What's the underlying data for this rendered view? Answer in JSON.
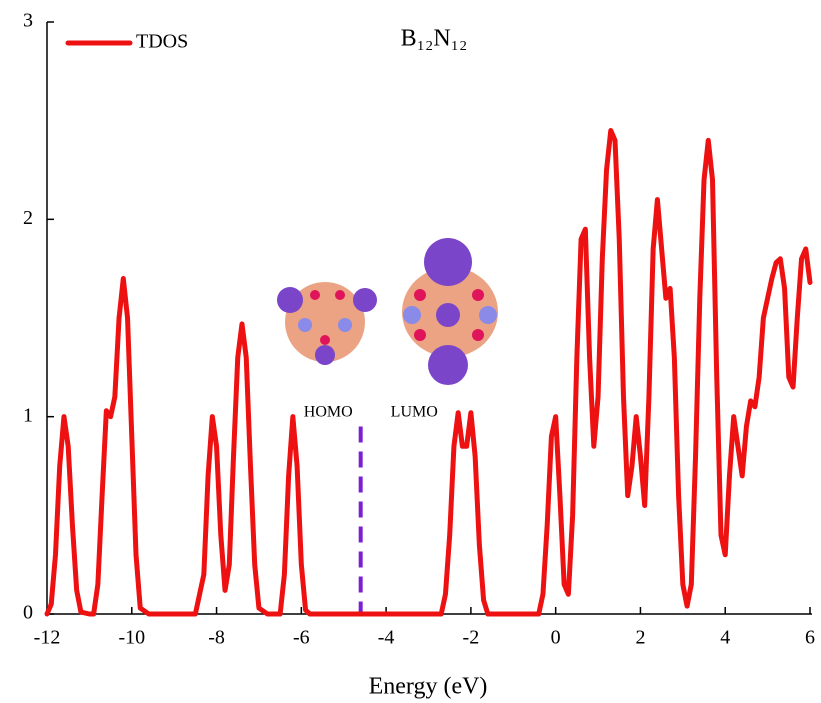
{
  "chart_data": {
    "type": "line",
    "title": "B₁₂N₁₂",
    "x_label": "Energy (eV)",
    "annotations": [
      "HOMO",
      "LUMO"
    ],
    "reference_line": {
      "x": -4.6,
      "color": "#7b1fd0"
    },
    "xlim": [
      -12,
      6
    ],
    "xticks": [
      -12,
      -10,
      -8,
      -6,
      -4,
      -2,
      0,
      2,
      4,
      6
    ],
    "ylim": [
      0,
      3
    ],
    "yticks": [
      0,
      1,
      2,
      3
    ],
    "legend": "top-left",
    "x": [
      -12,
      -11.9,
      -11.8,
      -11.7,
      -11.6,
      -11.5,
      -11.4,
      -11.3,
      -11.2,
      -11.0,
      -10.9,
      -10.8,
      -10.7,
      -10.6,
      -10.5,
      -10.4,
      -10.3,
      -10.2,
      -10.1,
      -10.0,
      -9.9,
      -9.8,
      -9.6,
      -8.5,
      -8.3,
      -8.2,
      -8.1,
      -8.0,
      -7.9,
      -7.8,
      -7.7,
      -7.6,
      -7.5,
      -7.4,
      -7.3,
      -7.2,
      -7.1,
      -7.0,
      -6.8,
      -6.5,
      -6.4,
      -6.3,
      -6.2,
      -6.1,
      -6.0,
      -5.9,
      -5.8,
      -2.7,
      -2.6,
      -2.5,
      -2.4,
      -2.3,
      -2.2,
      -2.1,
      -2.0,
      -1.9,
      -1.8,
      -1.7,
      -1.6,
      -0.4,
      -0.3,
      -0.2,
      -0.1,
      0.0,
      0.1,
      0.2,
      0.3,
      0.4,
      0.5,
      0.6,
      0.7,
      0.8,
      0.9,
      1.0,
      1.1,
      1.2,
      1.3,
      1.4,
      1.5,
      1.6,
      1.7,
      1.8,
      1.9,
      2.0,
      2.1,
      2.2,
      2.3,
      2.4,
      2.5,
      2.6,
      2.7,
      2.8,
      2.9,
      3.0,
      3.1,
      3.2,
      3.3,
      3.4,
      3.5,
      3.6,
      3.7,
      3.8,
      3.9,
      4.0,
      4.1,
      4.2,
      4.3,
      4.4,
      4.5,
      4.6,
      4.7,
      4.8,
      4.9,
      5.0,
      5.1,
      5.2,
      5.3,
      5.4,
      5.5,
      5.6,
      5.7,
      5.8,
      5.9,
      6.0
    ],
    "series": [
      {
        "name": "TDOS",
        "color": "#ee1111",
        "values": [
          0,
          0.05,
          0.3,
          0.75,
          1.0,
          0.85,
          0.45,
          0.12,
          0.01,
          0,
          0,
          0.15,
          0.6,
          1.03,
          1.0,
          1.1,
          1.5,
          1.7,
          1.5,
          0.9,
          0.3,
          0.03,
          0,
          0,
          0.2,
          0.7,
          1.0,
          0.85,
          0.4,
          0.12,
          0.25,
          0.8,
          1.3,
          1.47,
          1.3,
          0.75,
          0.25,
          0.03,
          0,
          0,
          0.2,
          0.7,
          1.0,
          0.75,
          0.25,
          0.02,
          0,
          0,
          0.1,
          0.4,
          0.85,
          1.02,
          0.85,
          0.85,
          1.02,
          0.8,
          0.35,
          0.07,
          0,
          0,
          0.1,
          0.45,
          0.9,
          1.0,
          0.6,
          0.15,
          0.1,
          0.5,
          1.3,
          1.9,
          1.95,
          1.3,
          0.85,
          1.1,
          1.8,
          2.25,
          2.45,
          2.4,
          1.9,
          1.1,
          0.6,
          0.75,
          1.0,
          0.8,
          0.55,
          1.1,
          1.85,
          2.1,
          1.85,
          1.6,
          1.65,
          1.3,
          0.6,
          0.15,
          0.04,
          0.15,
          0.8,
          1.6,
          2.2,
          2.4,
          2.2,
          1.2,
          0.4,
          0.3,
          0.7,
          1.0,
          0.85,
          0.7,
          0.95,
          1.08,
          1.05,
          1.2,
          1.5,
          1.6,
          1.7,
          1.78,
          1.8,
          1.65,
          1.2,
          1.15,
          1.5,
          1.8,
          1.85,
          1.68
        ]
      }
    ]
  }
}
